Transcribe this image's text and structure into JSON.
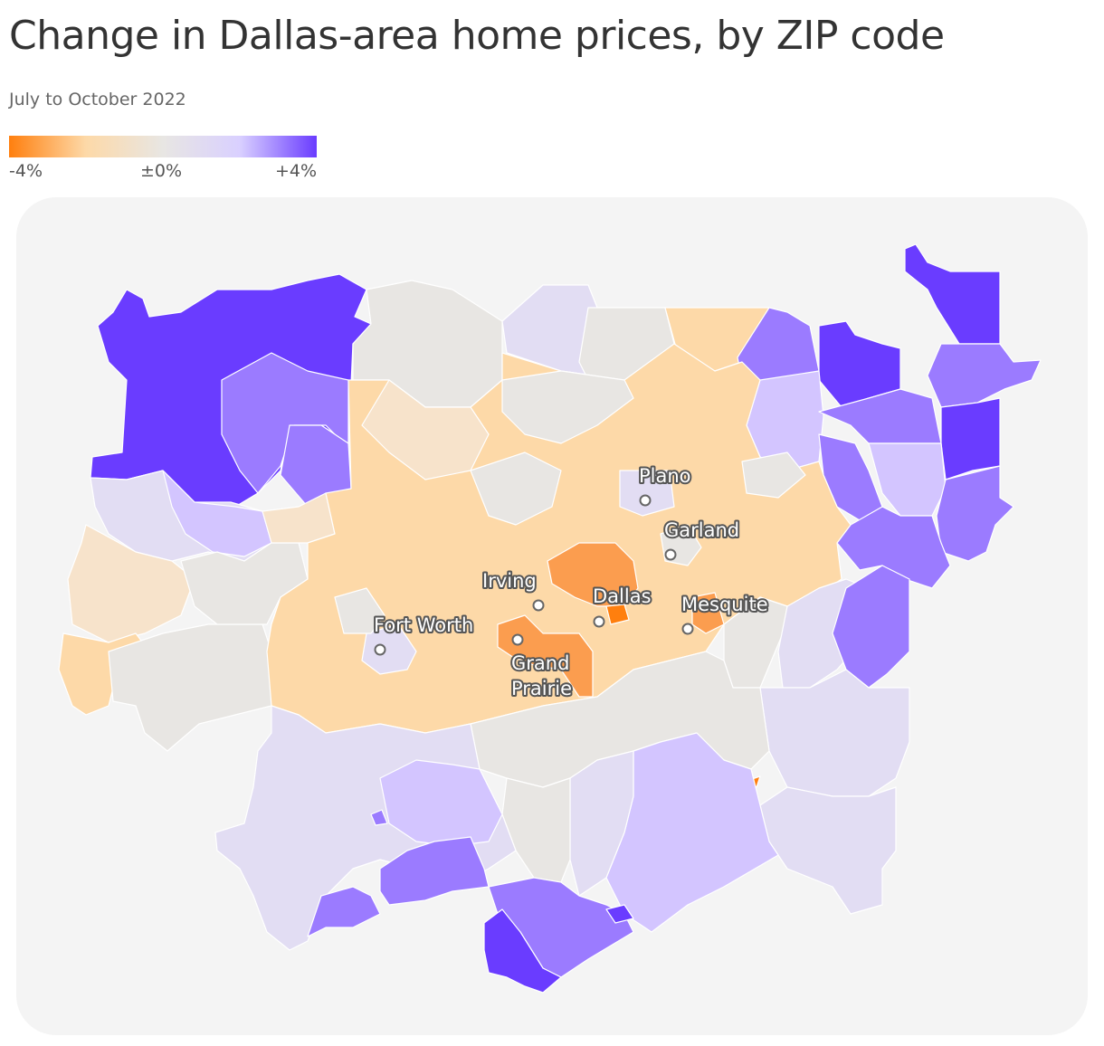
{
  "title": "Change in Dallas-area home prices, by ZIP code",
  "subtitle": "July to October 2022",
  "legend": {
    "min_label": "-4%",
    "mid_label": "±0%",
    "max_label": "+4%",
    "colors": [
      "#ff7f0e",
      "#fdd9a8",
      "#e8e6e3",
      "#d9d0ff",
      "#6a3cff"
    ]
  },
  "cities": [
    {
      "name": "Plano"
    },
    {
      "name": "Garland"
    },
    {
      "name": "Irving"
    },
    {
      "name": "Dallas"
    },
    {
      "name": "Mesquite"
    },
    {
      "name": "Fort Worth"
    },
    {
      "name": "Grand Prairie"
    }
  ],
  "colors": {
    "dark_orange": "#ff7f0e",
    "orange": "#fb9d4f",
    "light_orange": "#fdd9a8",
    "pale_orange": "#f7e3cb",
    "neutral": "#e8e6e3",
    "pale_purple": "#e2ddf3",
    "light_purple": "#d3c5ff",
    "purple": "#9b7bff",
    "dark_purple": "#6a3cff"
  }
}
